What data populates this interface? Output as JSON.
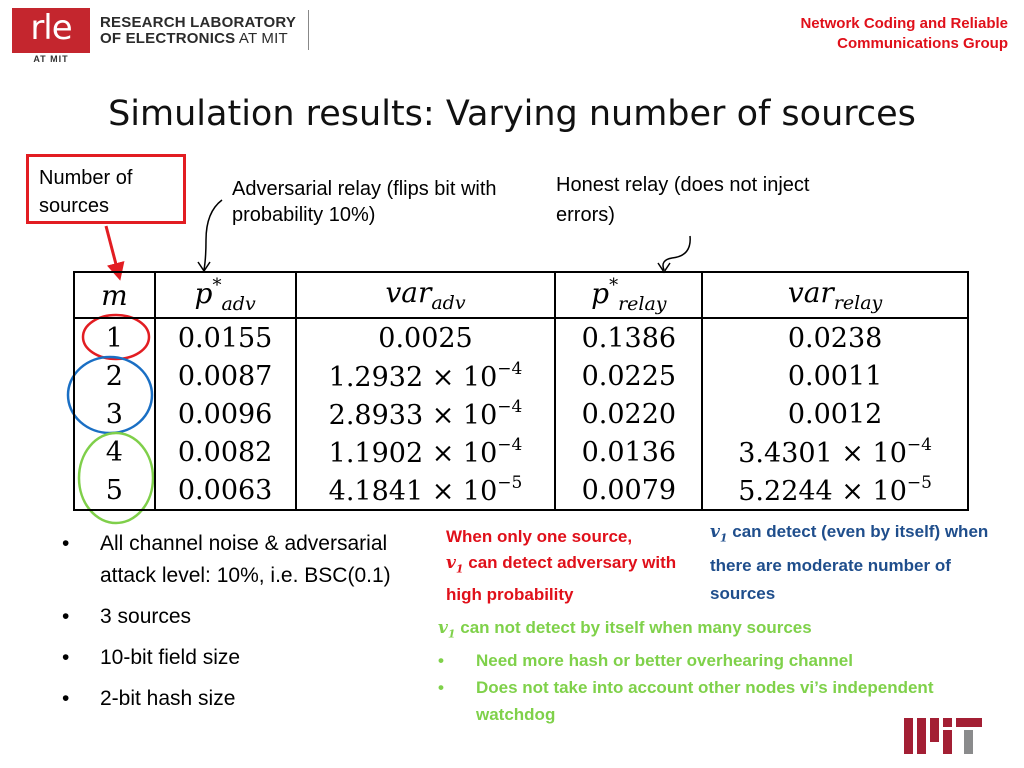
{
  "header": {
    "logo_text": "rle",
    "logo_sub": "AT MIT",
    "lab_line1": "RESEARCH LABORATORY",
    "lab_line2_bold": "OF ELECTRONICS",
    "lab_line2_thin": " AT MIT",
    "group_line1": "Network Coding and Reliable",
    "group_line2": "Communications Group"
  },
  "title": "Simulation results: Varying number of sources",
  "callouts": {
    "sources": "Number of sources",
    "adversarial": "Adversarial relay (flips bit with probability 10%)",
    "honest": "Honest relay (does not inject errors)"
  },
  "table": {
    "headers": [
      "m",
      "p*adv",
      "varadv",
      "p*relay",
      "varrelay"
    ],
    "rows": [
      [
        "1",
        "0.0155",
        "0.0025",
        "0.1386",
        "0.0238"
      ],
      [
        "2",
        "0.0087",
        "1.2932 × 10^-4",
        "0.0225",
        "0.0011"
      ],
      [
        "3",
        "0.0096",
        "2.8933 × 10^-4",
        "0.0220",
        "0.0012"
      ],
      [
        "4",
        "0.0082",
        "1.1902 × 10^-4",
        "0.0136",
        "3.4301 × 10^-4"
      ],
      [
        "5",
        "0.0063",
        "4.1841 × 10^-5",
        "0.0079",
        "5.2244 × 10^-5"
      ]
    ]
  },
  "bullets": [
    "All channel noise & adversarial attack level: 10%, i.e. BSC(0.1)",
    "3 sources",
    "10-bit field size",
    "2-bit hash size"
  ],
  "notes": {
    "red_a": "When only one source,",
    "red_b": " can detect adversary with high probability",
    "blue_b": " can detect (even by itself) when there are moderate number of sources",
    "green_b": " can not detect by itself when many sources",
    "green_items": [
      "Need more hash or better overhearing channel",
      "Does not take into account other nodes vi’s independent watchdog"
    ]
  },
  "colors": {
    "red": "#e0101a",
    "blue": "#1f4e8c",
    "green": "#7fd14a",
    "circle_blue": "#1a6fc4",
    "circle_green": "#7fcf4a"
  }
}
